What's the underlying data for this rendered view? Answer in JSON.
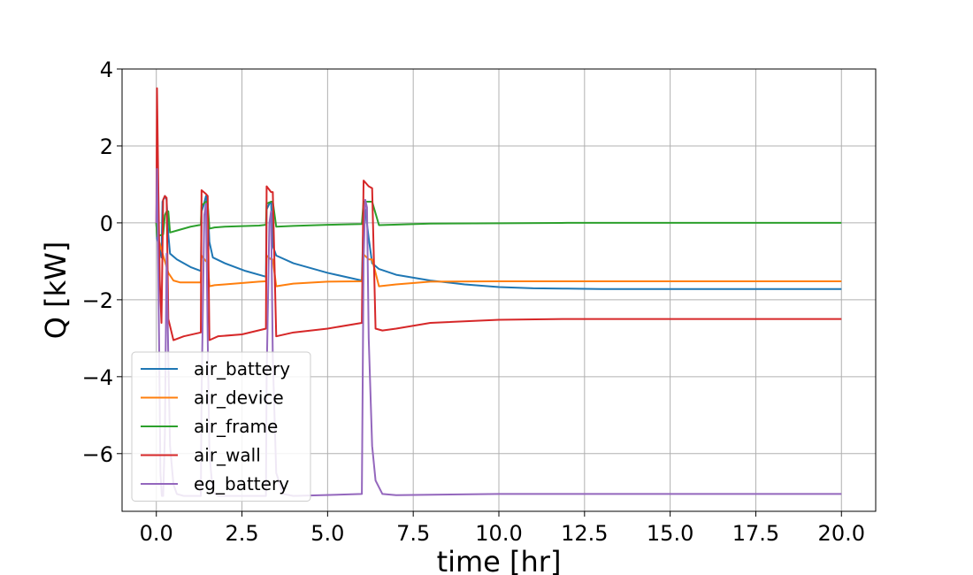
{
  "chart_data": {
    "type": "line",
    "title": "",
    "xlabel": "time [hr]",
    "ylabel": "Q [kW]",
    "xlim": [
      -1.0,
      21.0
    ],
    "ylim": [
      -7.5,
      4.0
    ],
    "xticks": [
      0.0,
      2.5,
      5.0,
      7.5,
      10.0,
      12.5,
      15.0,
      17.5,
      20.0
    ],
    "xtick_labels": [
      "0.0",
      "2.5",
      "5.0",
      "7.5",
      "10.0",
      "12.5",
      "15.0",
      "17.5",
      "20.0"
    ],
    "yticks": [
      -6,
      -4,
      -2,
      0,
      2,
      4
    ],
    "ytick_labels": [
      "−6",
      "−4",
      "−2",
      "0",
      "2",
      "4"
    ],
    "grid": true,
    "legend_position": "lower-left",
    "series": [
      {
        "name": "air_battery",
        "color": "#1f77b4",
        "x": [
          0,
          0.02,
          0.15,
          0.18,
          0.25,
          0.3,
          0.35,
          0.4,
          0.6,
          1.0,
          1.3,
          1.32,
          1.38,
          1.45,
          1.5,
          1.55,
          1.65,
          2.0,
          2.6,
          3.2,
          3.22,
          3.3,
          3.35,
          3.4,
          3.5,
          4.0,
          5.0,
          6.0,
          6.05,
          6.1,
          6.2,
          6.3,
          6.5,
          7.0,
          8.0,
          9.0,
          10.0,
          11.0,
          12.0,
          13.0,
          15.0,
          17.5,
          20.0
        ],
        "values": [
          0,
          -0.4,
          -0.9,
          0.55,
          0.7,
          0.6,
          -0.3,
          -0.8,
          -0.95,
          -1.15,
          -1.25,
          0.3,
          0.45,
          0.7,
          0.45,
          -0.5,
          -0.9,
          -1.05,
          -1.25,
          -1.4,
          0.35,
          0.5,
          0.55,
          -0.6,
          -0.85,
          -1.05,
          -1.3,
          -1.5,
          0.15,
          0.35,
          -0.4,
          -1.05,
          -1.2,
          -1.35,
          -1.5,
          -1.6,
          -1.67,
          -1.7,
          -1.71,
          -1.72,
          -1.72,
          -1.72,
          -1.72
        ]
      },
      {
        "name": "air_device",
        "color": "#ff7f0e",
        "x": [
          0,
          0.02,
          0.2,
          0.35,
          0.5,
          0.7,
          1.0,
          1.3,
          1.32,
          1.45,
          1.5,
          1.55,
          1.7,
          2.0,
          3.0,
          3.2,
          3.22,
          3.35,
          3.4,
          3.5,
          3.7,
          4.0,
          5.0,
          6.0,
          6.05,
          6.2,
          6.3,
          6.5,
          7.0,
          8.0,
          10.0,
          15.0,
          20.0
        ],
        "values": [
          0,
          -0.3,
          -0.85,
          -1.3,
          -1.5,
          -1.55,
          -1.55,
          -1.55,
          -0.85,
          -1.0,
          -1.0,
          -1.65,
          -1.62,
          -1.6,
          -1.53,
          -1.52,
          -0.85,
          -0.95,
          -0.95,
          -1.65,
          -1.62,
          -1.58,
          -1.53,
          -1.52,
          -0.82,
          -0.95,
          -0.95,
          -1.65,
          -1.6,
          -1.53,
          -1.52,
          -1.52,
          -1.52
        ]
      },
      {
        "name": "air_frame",
        "color": "#2ca02c",
        "x": [
          0,
          0.02,
          0.2,
          0.25,
          0.3,
          0.35,
          0.4,
          0.6,
          1.0,
          1.3,
          1.32,
          1.45,
          1.5,
          1.55,
          1.7,
          2.0,
          3.0,
          3.2,
          3.22,
          3.35,
          3.4,
          3.5,
          4.0,
          5.0,
          6.0,
          6.05,
          6.2,
          6.3,
          6.5,
          8.0,
          10.0,
          12.0,
          15.0,
          20.0
        ],
        "values": [
          0,
          -0.35,
          -0.3,
          0.2,
          0.3,
          0.3,
          -0.25,
          -0.2,
          -0.1,
          -0.05,
          0.45,
          0.55,
          0.5,
          -0.15,
          -0.12,
          -0.1,
          -0.07,
          -0.05,
          0.5,
          0.55,
          0.55,
          -0.1,
          -0.08,
          -0.05,
          -0.03,
          0.55,
          0.55,
          0.55,
          -0.06,
          -0.02,
          -0.01,
          0,
          0,
          0
        ]
      },
      {
        "name": "air_wall",
        "color": "#d62728",
        "x": [
          0,
          0.02,
          0.06,
          0.1,
          0.15,
          0.2,
          0.25,
          0.3,
          0.35,
          0.5,
          0.8,
          1.3,
          1.32,
          1.45,
          1.5,
          1.55,
          1.8,
          2.5,
          3.2,
          3.22,
          3.35,
          3.4,
          3.5,
          4.0,
          5.0,
          6.0,
          6.05,
          6.2,
          6.3,
          6.4,
          6.6,
          7.0,
          8.0,
          10.0,
          12.0,
          15.0,
          20.0
        ],
        "values": [
          0,
          3.5,
          0.8,
          -1.5,
          -2.6,
          0.6,
          0.7,
          0.65,
          -2.5,
          -3.05,
          -2.95,
          -2.85,
          0.85,
          0.75,
          0.7,
          -3.05,
          -2.95,
          -2.9,
          -2.75,
          0.95,
          0.8,
          0.8,
          -2.95,
          -2.85,
          -2.75,
          -2.6,
          1.1,
          0.95,
          0.9,
          -2.75,
          -2.8,
          -2.75,
          -2.6,
          -2.52,
          -2.5,
          -2.5,
          -2.5
        ]
      },
      {
        "name": "eg_battery",
        "color": "#9467bd",
        "x": [
          0,
          0.02,
          0.08,
          0.12,
          0.16,
          0.2,
          0.25,
          0.3,
          0.35,
          0.4,
          0.5,
          0.6,
          0.8,
          1.0,
          1.3,
          1.32,
          1.4,
          1.45,
          1.5,
          1.55,
          1.65,
          1.8,
          2.0,
          3.2,
          3.22,
          3.3,
          3.35,
          3.4,
          3.5,
          3.7,
          4.0,
          6.0,
          6.05,
          6.1,
          6.15,
          6.2,
          6.3,
          6.4,
          6.6,
          7.0,
          10.0,
          15.0,
          20.0
        ],
        "values": [
          0,
          1.4,
          -3.0,
          -6.5,
          -7.1,
          -7.1,
          -5.5,
          -0.8,
          -3.5,
          -5.8,
          -6.8,
          -7.05,
          -7.1,
          -7.1,
          -7.1,
          -4.5,
          0.2,
          0.5,
          -3.0,
          -6.0,
          -7.0,
          -7.1,
          -7.1,
          -7.1,
          -4.0,
          0.0,
          0.3,
          -3.5,
          -6.5,
          -7.05,
          -7.1,
          -7.05,
          -1.0,
          0.6,
          0.4,
          -3.0,
          -5.8,
          -6.7,
          -7.05,
          -7.08,
          -7.05,
          -7.05,
          -7.05
        ]
      }
    ]
  }
}
